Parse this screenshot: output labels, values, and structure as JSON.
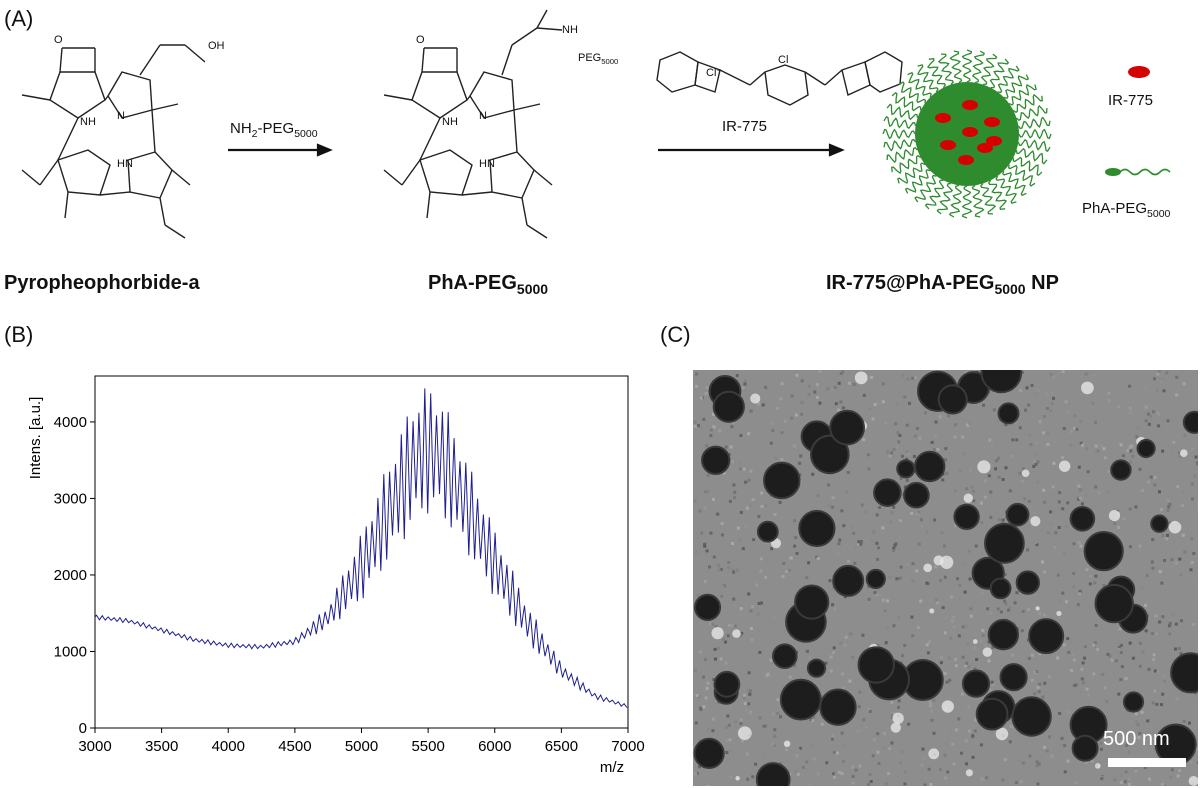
{
  "panels": {
    "a": "(A)",
    "b": "(B)",
    "c": "(C)"
  },
  "scheme": {
    "compound1": "Pyropheophorbide-a",
    "compound2_main": "PhA-PEG",
    "compound2_sub": "5000",
    "compound3_main": "IR-775@PhA-PEG",
    "compound3_sub": "5000",
    "compound3_tail": " NP",
    "arrow1_main": "NH",
    "arrow1_sub1": "2",
    "arrow1_mid": "-PEG",
    "arrow1_sub2": "5000",
    "arrow2_label": "IR-775",
    "oh_label": "OH",
    "o_label": "O",
    "nh_label": "NH",
    "n_label": "N",
    "hn_label": "HN",
    "peg_label": "PEG",
    "peg_sub": "5000",
    "cl_label": "Cl",
    "cl_minus": "Cl⁻",
    "legend_ir": "IR-775",
    "legend_pha_main": "PhA-PEG",
    "legend_pha_sub": "5000",
    "colors": {
      "core": "#2e8b2e",
      "dye": "#d60000",
      "peg": "#2e8b2e"
    }
  },
  "tem": {
    "scalebar_label": "500 nm"
  },
  "chart_data": {
    "type": "line",
    "xlabel": "m/z",
    "ylabel": "Intens. [a.u.]",
    "xlim": [
      3000,
      7000
    ],
    "ylim": [
      0,
      4600
    ],
    "xticks": [
      3000,
      3500,
      4000,
      4500,
      5000,
      5500,
      6000,
      6500,
      7000
    ],
    "yticks": [
      0,
      1000,
      2000,
      3000,
      4000
    ],
    "series": [
      {
        "color": "#1f1f8f",
        "envelope_x": [
          3000,
          3250,
          3500,
          3750,
          4000,
          4250,
          4500,
          4750,
          5000,
          5250,
          5400,
          5500,
          5600,
          5750,
          6000,
          6250,
          6500,
          6750,
          7000
        ],
        "envelope_y": [
          1450,
          1400,
          1280,
          1150,
          1080,
          1060,
          1130,
          1450,
          2100,
          3000,
          3500,
          3650,
          3550,
          3050,
          2150,
          1350,
          750,
          420,
          280
        ],
        "oscillation_half_amplitude_y": [
          30,
          30,
          30,
          30,
          30,
          30,
          40,
          150,
          450,
          700,
          850,
          850,
          800,
          650,
          450,
          250,
          100,
          40,
          20
        ],
        "peak_spacing_mz": 44
      }
    ]
  }
}
